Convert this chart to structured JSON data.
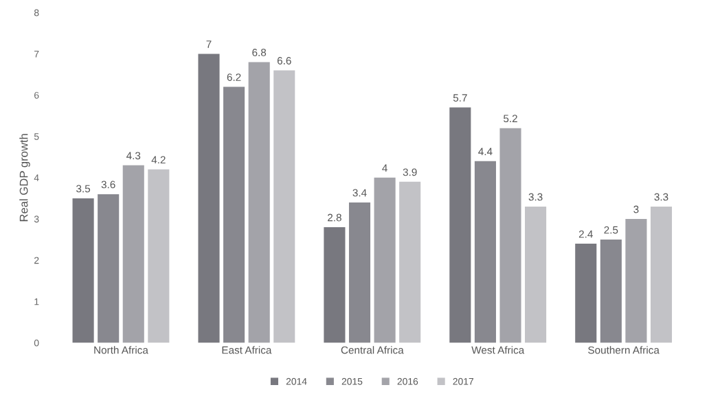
{
  "chart_data": {
    "type": "bar",
    "ylabel": "Real GDP growth",
    "categories": [
      "North Africa",
      "East Africa",
      "Central Africa",
      "West Africa",
      "Southern Africa"
    ],
    "series": [
      {
        "name": "2014",
        "color": "#78787f",
        "values": [
          3.5,
          7,
          2.8,
          5.7,
          2.4
        ]
      },
      {
        "name": "2015",
        "color": "#88888f",
        "values": [
          3.6,
          6.2,
          3.4,
          4.4,
          2.5
        ]
      },
      {
        "name": "2016",
        "color": "#a3a3a9",
        "values": [
          4.3,
          6.8,
          4,
          5.2,
          3
        ]
      },
      {
        "name": "2017",
        "color": "#c2c2c6",
        "values": [
          4.2,
          6.6,
          3.9,
          3.3,
          3.3
        ]
      }
    ],
    "ylim": [
      0,
      8
    ],
    "yticks": [
      0,
      1,
      2,
      3,
      4,
      5,
      6,
      7,
      8
    ],
    "grid": false,
    "legend": "bottom",
    "data_labels": true
  }
}
